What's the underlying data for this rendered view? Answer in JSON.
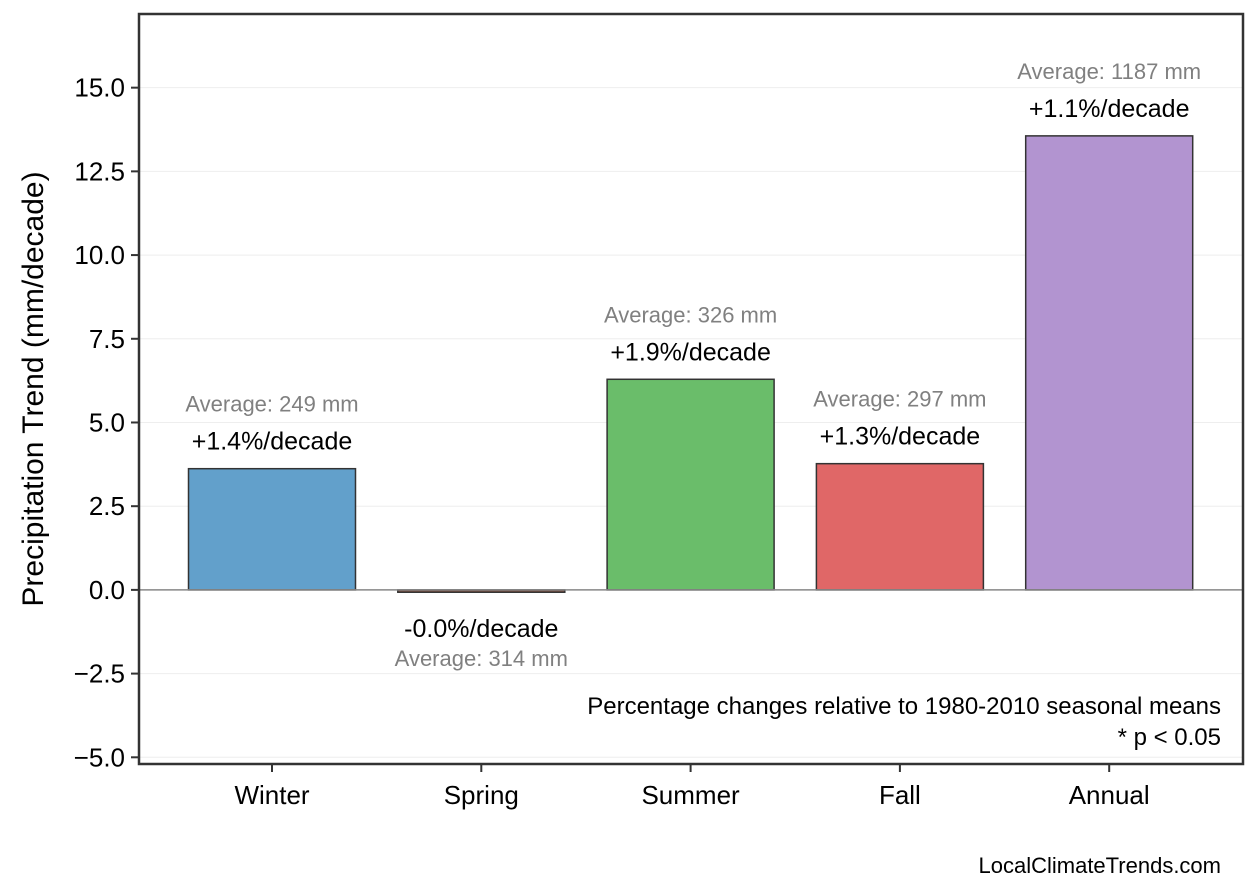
{
  "chart_data": {
    "type": "bar",
    "title": "",
    "xlabel": "",
    "ylabel": "Precipitation Trend (mm/decade)",
    "ylim": [
      -5.2,
      17.2
    ],
    "yticks": [
      "−5.0",
      "−2.5",
      "0.0",
      "2.5",
      "5.0",
      "7.5",
      "10.0",
      "12.5",
      "15.0"
    ],
    "ytick_values": [
      -5,
      -2.5,
      0,
      2.5,
      5,
      7.5,
      10,
      12.5,
      15
    ],
    "grid": "horizontal, light",
    "categories": [
      "Winter",
      "Spring",
      "Summer",
      "Fall",
      "Annual"
    ],
    "values": [
      3.62,
      -0.07,
      6.29,
      3.77,
      13.56
    ],
    "colors": [
      "#62a0cb",
      "#8c5a4b",
      "#6abd6a",
      "#e06767",
      "#b294d0"
    ],
    "percent_labels": [
      "+1.4%/decade",
      "-0.0%/decade",
      "+1.9%/decade",
      "+1.3%/decade",
      "+1.1%/decade"
    ],
    "average_labels": [
      "Average: 249 mm",
      "Average: 314 mm",
      "Average: 326 mm",
      "Average: 297 mm",
      "Average: 1187 mm"
    ],
    "annotations": [
      "Percentage changes relative to 1980-2010 seasonal means",
      "* p < 0.05"
    ],
    "credit": "LocalClimateTrends.com"
  }
}
